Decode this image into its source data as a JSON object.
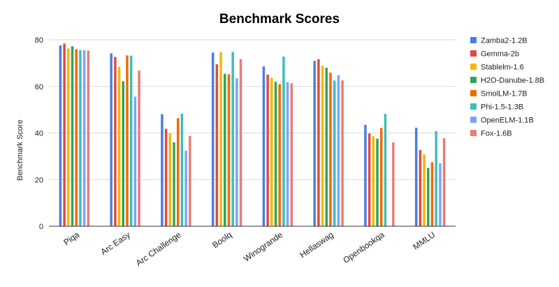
{
  "chart_data": {
    "type": "bar",
    "title": "Benchmark Scores",
    "xlabel": "",
    "ylabel": "Benchmark Score",
    "ylim": [
      0,
      80
    ],
    "yticks": [
      0,
      20,
      40,
      60,
      80
    ],
    "grid": true,
    "legend_position": "right",
    "categories": [
      "Piqa",
      "Arc Easy",
      "Arc Challenge",
      "Boolq",
      "Winogrande",
      "Hellaswag",
      "Openbookqa",
      "MMLU"
    ],
    "series": [
      {
        "name": "Zamba2-1.2B",
        "color": "#4a7ee3",
        "values": [
          77.6,
          74.2,
          48.1,
          74.5,
          68.6,
          71.0,
          43.5,
          42.3
        ]
      },
      {
        "name": "Gemma-2b",
        "color": "#e14a3e",
        "values": [
          78.4,
          72.6,
          41.8,
          69.5,
          65.1,
          71.7,
          39.8,
          32.7
        ]
      },
      {
        "name": "Stablelm-1.6",
        "color": "#f3b800",
        "values": [
          76.3,
          68.4,
          39.9,
          74.7,
          63.6,
          68.8,
          38.6,
          30.8
        ]
      },
      {
        "name": "H2O-Danube-1.8B",
        "color": "#33a453",
        "values": [
          77.2,
          62.2,
          36.0,
          65.4,
          62.0,
          68.0,
          37.6,
          25.0
        ]
      },
      {
        "name": "SmolLM-1.7B",
        "color": "#f46a00",
        "values": [
          76.0,
          73.3,
          46.4,
          65.2,
          61.0,
          65.9,
          42.2,
          27.5
        ]
      },
      {
        "name": "Phi-1.5-1.3B",
        "color": "#3fbcbe",
        "values": [
          75.6,
          73.2,
          48.3,
          74.8,
          72.8,
          62.5,
          48.2,
          40.8
        ]
      },
      {
        "name": "OpenELM-1.1B",
        "color": "#7ba6ef",
        "values": [
          75.6,
          55.6,
          32.4,
          63.5,
          61.8,
          64.8,
          0,
          27.0
        ]
      },
      {
        "name": "Fox-1.6B",
        "color": "#e77d78",
        "values": [
          75.4,
          66.8,
          38.8,
          71.7,
          61.3,
          62.6,
          36.0,
          37.8
        ]
      }
    ]
  }
}
